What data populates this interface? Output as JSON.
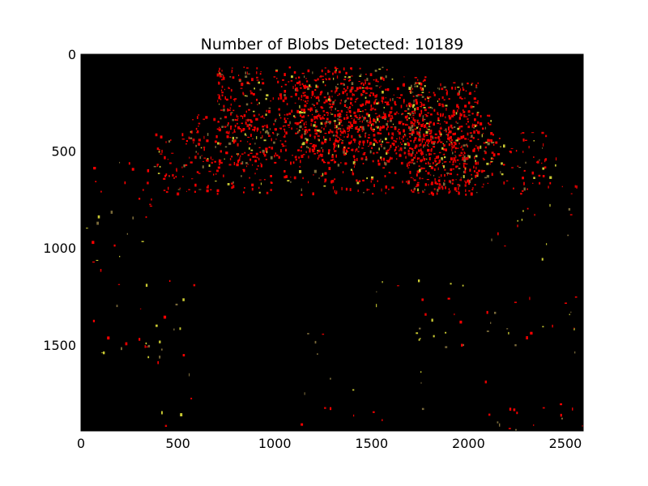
{
  "chart_data": {
    "type": "heatmap",
    "title": "Number of Blobs Detected: 10189",
    "xlabel": "",
    "ylabel": "",
    "xlim": [
      0,
      2592
    ],
    "ylim": [
      1944,
      0
    ],
    "x_ticks": [
      {
        "value": 0,
        "label": "0"
      },
      {
        "value": 500,
        "label": "500"
      },
      {
        "value": 1000,
        "label": "1000"
      },
      {
        "value": 1500,
        "label": "1500"
      },
      {
        "value": 2000,
        "label": "2000"
      },
      {
        "value": 2500,
        "label": "2500"
      }
    ],
    "y_ticks": [
      {
        "value": 0,
        "label": "0"
      },
      {
        "value": 500,
        "label": "500"
      },
      {
        "value": 1000,
        "label": "1000"
      },
      {
        "value": 1500,
        "label": "1500"
      }
    ],
    "blob_count": 10189,
    "image_background": "#000000",
    "blob_colors": [
      "#ff0000",
      "#e00000",
      "#c8c832",
      "#7a6a3a"
    ],
    "grid": false
  }
}
